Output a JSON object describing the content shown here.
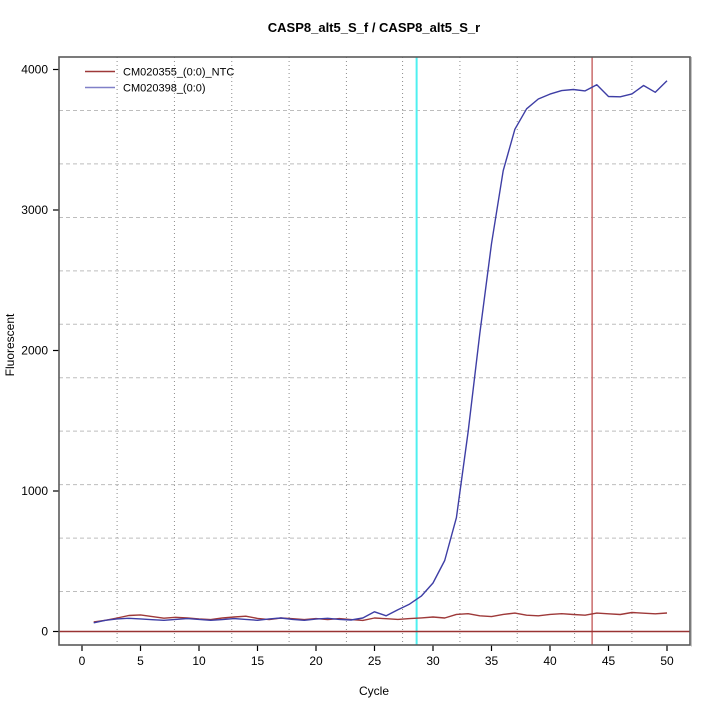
{
  "title": "CASP8_alt5_S_f / CASP8_alt5_S_r",
  "axes": {
    "x_label": "Cycle",
    "y_label": "Fluorescent"
  },
  "legend": {
    "items": [
      {
        "label": "CM020355_(0:0)_NTC",
        "color": "#9e3939"
      },
      {
        "label": "CM020398_(0:0)",
        "color": "#8080c8"
      }
    ]
  },
  "chart_data": {
    "type": "line",
    "title": "CASP8_alt5_S_f / CASP8_alt5_S_r",
    "xlabel": "Cycle",
    "ylabel": "Fluorescent",
    "x_ticks": [
      0,
      5,
      10,
      15,
      20,
      25,
      30,
      35,
      40,
      45,
      50
    ],
    "y_ticks": [
      0,
      1000,
      2000,
      3000,
      4000
    ],
    "xlim": [
      -2,
      52
    ],
    "ylim": [
      -100,
      4090
    ],
    "grid": {
      "vertical_dotted_at_cycles": [
        3.0,
        7.9,
        12.8,
        17.7,
        22.6,
        27.4,
        32.3,
        37.2,
        42.1,
        47.0
      ],
      "horizontal_dashed_at_values": [
        3708,
        3328,
        2947,
        2567,
        2187,
        1806,
        1426,
        1045,
        665,
        285
      ],
      "vertical_color": "#8c8c8c",
      "horizontal_color": "#bdbdbd"
    },
    "reference_lines": {
      "cyan_vertical_x": 28.6,
      "cyan_color": "#4ff0f0",
      "red_vertical_x": 43.6,
      "red_vertical_color": "#c66161",
      "dark_red_horizontal_y": 0,
      "dark_red_color": "#993333"
    },
    "x": [
      1,
      2,
      3,
      4,
      5,
      6,
      7,
      8,
      9,
      10,
      11,
      12,
      13,
      14,
      15,
      16,
      17,
      18,
      19,
      20,
      21,
      22,
      23,
      24,
      25,
      26,
      27,
      28,
      29,
      30,
      31,
      32,
      33,
      34,
      35,
      36,
      37,
      38,
      39,
      40,
      41,
      42,
      43,
      44,
      45,
      46,
      47,
      48,
      49,
      50
    ],
    "series": [
      {
        "name": "CM020355_(0:0)_NTC",
        "color": "#9e3939",
        "values": [
          68,
          80,
          96,
          114,
          118,
          106,
          95,
          101,
          96,
          89,
          85,
          96,
          103,
          109,
          93,
          85,
          96,
          91,
          85,
          92,
          85,
          92,
          85,
          79,
          96,
          91,
          86,
          92,
          97,
          103,
          96,
          122,
          127,
          112,
          106,
          122,
          131,
          116,
          112,
          122,
          127,
          121,
          116,
          131,
          126,
          121,
          135,
          130,
          126,
          132
        ]
      },
      {
        "name": "CM020398_(0:0)",
        "color": "#3e3ea5",
        "values": [
          62,
          80,
          90,
          94,
          90,
          84,
          80,
          86,
          92,
          86,
          80,
          85,
          92,
          86,
          80,
          90,
          96,
          86,
          80,
          88,
          94,
          86,
          82,
          96,
          140,
          112,
          155,
          195,
          252,
          345,
          505,
          810,
          1420,
          2120,
          2760,
          3280,
          3575,
          3720,
          3790,
          3825,
          3850,
          3858,
          3848,
          3892,
          3808,
          3806,
          3826,
          3886,
          3838,
          3920
        ]
      }
    ]
  }
}
